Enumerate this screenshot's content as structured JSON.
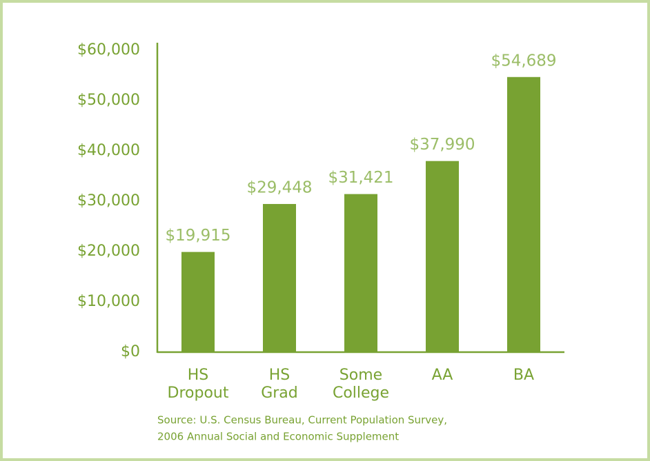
{
  "chart_data": {
    "type": "bar",
    "categories": [
      "HS Dropout",
      "HS Grad",
      "Some College",
      "AA",
      "BA"
    ],
    "values": [
      19915,
      29448,
      31421,
      37990,
      54689
    ],
    "value_labels": [
      "$19,915",
      "$29,448",
      "$31,421",
      "$37,990",
      "$54,689"
    ],
    "color": "#78a232",
    "ylim": [
      0,
      60000
    ],
    "yticks": [
      {
        "value": 0,
        "label": "$0"
      },
      {
        "value": 10000,
        "label": "$10,000"
      },
      {
        "value": 20000,
        "label": "$20,000"
      },
      {
        "value": 30000,
        "label": "$30,000"
      },
      {
        "value": 40000,
        "label": "$40,000"
      },
      {
        "value": 50000,
        "label": "$50,000"
      },
      {
        "value": 60000,
        "label": "$60,000"
      }
    ],
    "grid": false,
    "source": [
      "Source: U.S. Census Bureau, Current Population Survey,",
      "2006 Annual Social and Economic Supplement"
    ]
  }
}
